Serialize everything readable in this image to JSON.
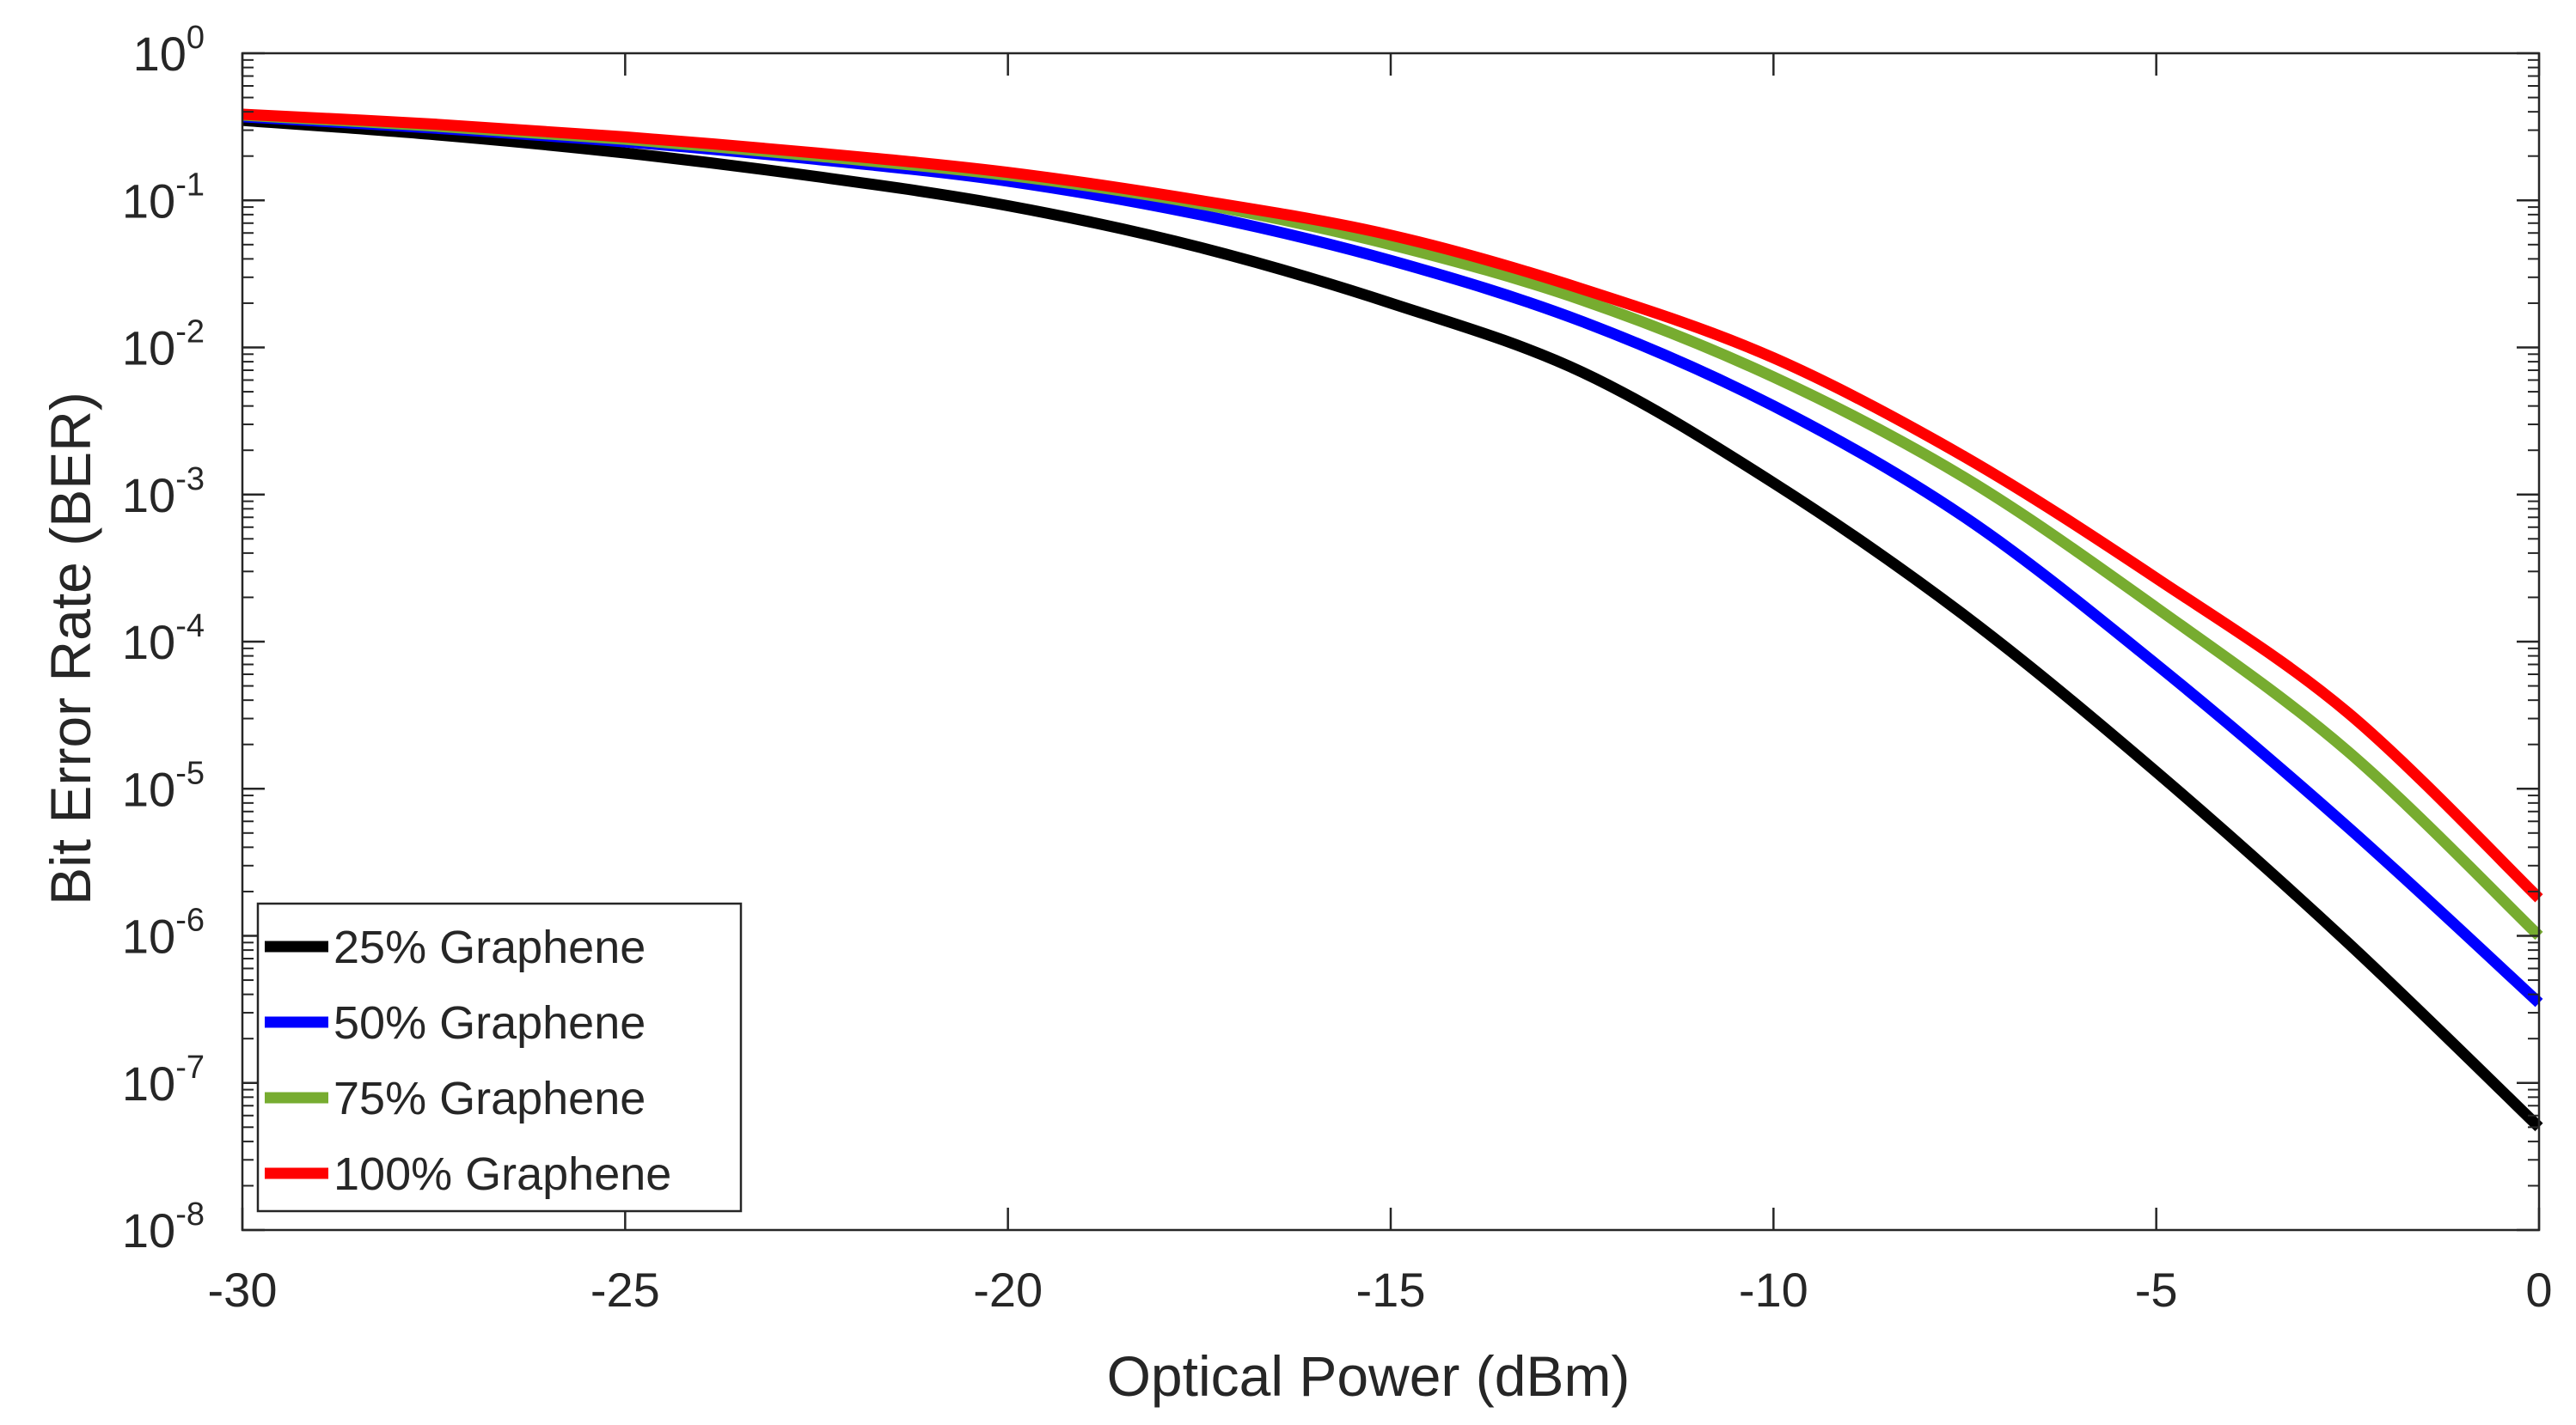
{
  "chart_data": {
    "type": "line",
    "title": "",
    "xlabel": "Optical Power (dBm)",
    "ylabel": "Bit Error Rate (BER)",
    "yscale": "log",
    "xlim": [
      -30,
      0
    ],
    "ylim_exponent": [
      -8,
      0
    ],
    "x_ticks": [
      -30,
      -25,
      -20,
      -15,
      -10,
      -5,
      0
    ],
    "x_tick_labels": [
      "-30",
      "-25",
      "-20",
      "-15",
      "-10",
      "-5",
      "0"
    ],
    "y_ticks_exponent": [
      0,
      -1,
      -2,
      -3,
      -4,
      -5,
      -6,
      -7,
      -8
    ],
    "y_tick_base": "10",
    "y_tick_exponent_labels": [
      "0",
      "-1",
      "-2",
      "-3",
      "-4",
      "-5",
      "-6",
      "-7",
      "-8"
    ],
    "grid": false,
    "legend_position": "bottom-left",
    "x": [
      -30,
      -27.5,
      -25,
      -22.5,
      -20,
      -17.5,
      -15,
      -12.5,
      -10,
      -7.5,
      -5,
      -2.5,
      0
    ],
    "series": [
      {
        "name": "25% Graphene",
        "color": "#000000",
        "values": [
          0.35,
          0.28,
          0.21,
          0.145,
          0.092,
          0.048,
          0.02,
          0.0068,
          0.0012,
          0.00015,
          1.3e-05,
          9e-07,
          5e-08
        ]
      },
      {
        "name": "50% Graphene",
        "color": "#0000FF",
        "values": [
          0.37,
          0.31,
          0.25,
          0.19,
          0.135,
          0.08,
          0.039,
          0.015,
          0.004,
          0.0007,
          7e-05,
          5.5e-06,
          3.5e-07
        ]
      },
      {
        "name": "75% Graphene",
        "color": "#77AC30",
        "values": [
          0.38,
          0.32,
          0.26,
          0.2,
          0.148,
          0.095,
          0.05,
          0.021,
          0.0063,
          0.0013,
          0.00017,
          1.8e-05,
          1e-06
        ]
      },
      {
        "name": "100% Graphene",
        "color": "#FF0000",
        "values": [
          0.385,
          0.33,
          0.27,
          0.21,
          0.155,
          0.1,
          0.058,
          0.025,
          0.0085,
          0.0018,
          0.00027,
          3.3e-05,
          1.8e-06
        ]
      }
    ]
  }
}
